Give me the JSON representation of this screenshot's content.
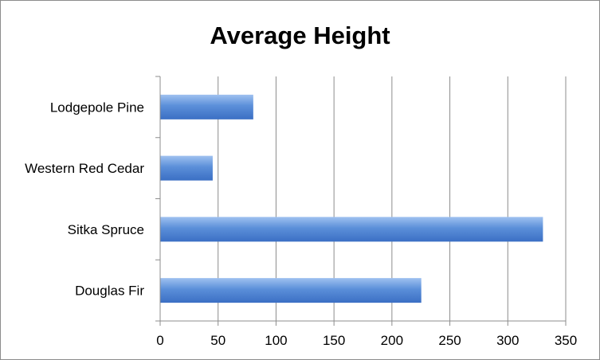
{
  "chart_data": {
    "type": "bar",
    "orientation": "horizontal",
    "title": "Average Height",
    "categories": [
      "Douglas Fir",
      "Sitka Spruce",
      "Western Red Cedar",
      "Lodgepole Pine"
    ],
    "values": [
      225,
      330,
      45,
      80
    ],
    "xlabel": "",
    "ylabel": "",
    "xlim": [
      0,
      350
    ],
    "xticks": [
      "0",
      "50",
      "100",
      "150",
      "200",
      "250",
      "300",
      "350"
    ],
    "grid": "vertical",
    "legend": "none",
    "colors": {
      "bar": "#5b8fd9",
      "bar_light": "#9fc1f0",
      "bar_dark": "#3b6fc4",
      "grid": "#8c8c8c"
    }
  }
}
